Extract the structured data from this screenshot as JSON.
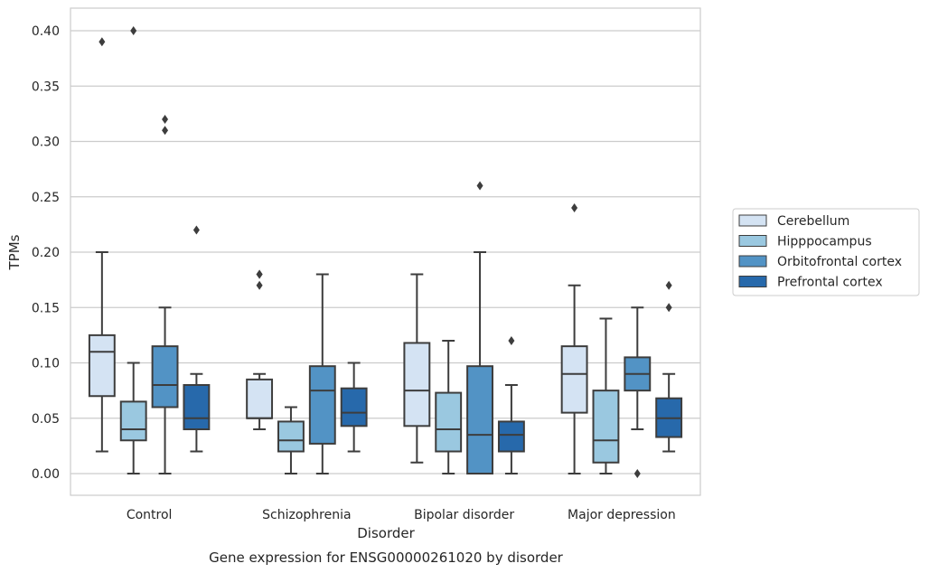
{
  "chart_data": {
    "type": "boxplot",
    "caption": "Gene expression for ENSG00000261020 by disorder",
    "xlabel": "Disorder",
    "ylabel": "TPMs",
    "ylim": [
      -0.02,
      0.42
    ],
    "yticks": [
      "0.00",
      "0.05",
      "0.10",
      "0.15",
      "0.20",
      "0.25",
      "0.30",
      "0.35",
      "0.40"
    ],
    "grid": true,
    "legend_position": "right-outside",
    "categories": [
      "Control",
      "Schizophrenia",
      "Bipolar disorder",
      "Major depression"
    ],
    "series": [
      {
        "name": "Cerebellum",
        "color": "#d4e3f3",
        "boxes": [
          {
            "whislo": 0.02,
            "q1": 0.07,
            "med": 0.11,
            "q3": 0.125,
            "whishi": 0.2,
            "fliers": [
              0.39
            ]
          },
          {
            "whislo": 0.04,
            "q1": 0.05,
            "med": 0.05,
            "q3": 0.085,
            "whishi": 0.09,
            "fliers": [
              0.17,
              0.18,
              0.18
            ]
          },
          {
            "whislo": 0.01,
            "q1": 0.043,
            "med": 0.075,
            "q3": 0.118,
            "whishi": 0.18,
            "fliers": []
          },
          {
            "whislo": 0.0,
            "q1": 0.055,
            "med": 0.09,
            "q3": 0.115,
            "whishi": 0.17,
            "fliers": [
              0.24
            ]
          }
        ]
      },
      {
        "name": "Hipppocampus",
        "color": "#9ac8e0",
        "boxes": [
          {
            "whislo": 0.0,
            "q1": 0.03,
            "med": 0.04,
            "q3": 0.065,
            "whishi": 0.1,
            "fliers": [
              0.4
            ]
          },
          {
            "whislo": 0.0,
            "q1": 0.02,
            "med": 0.03,
            "q3": 0.047,
            "whishi": 0.06,
            "fliers": []
          },
          {
            "whislo": 0.0,
            "q1": 0.02,
            "med": 0.04,
            "q3": 0.073,
            "whishi": 0.12,
            "fliers": []
          },
          {
            "whislo": 0.0,
            "q1": 0.01,
            "med": 0.03,
            "q3": 0.075,
            "whishi": 0.14,
            "fliers": []
          }
        ]
      },
      {
        "name": "Orbitofrontal cortex",
        "color": "#5293c5",
        "boxes": [
          {
            "whislo": 0.0,
            "q1": 0.06,
            "med": 0.08,
            "q3": 0.115,
            "whishi": 0.15,
            "fliers": [
              0.31,
              0.32
            ]
          },
          {
            "whislo": 0.0,
            "q1": 0.027,
            "med": 0.075,
            "q3": 0.097,
            "whishi": 0.18,
            "fliers": []
          },
          {
            "whislo": 0.0,
            "q1": 0.0,
            "med": 0.035,
            "q3": 0.097,
            "whishi": 0.2,
            "fliers": [
              0.26
            ]
          },
          {
            "whislo": 0.04,
            "q1": 0.075,
            "med": 0.09,
            "q3": 0.105,
            "whishi": 0.15,
            "fliers": [
              0.0
            ]
          }
        ]
      },
      {
        "name": "Prefrontal cortex",
        "color": "#2769ab",
        "boxes": [
          {
            "whislo": 0.02,
            "q1": 0.04,
            "med": 0.05,
            "q3": 0.08,
            "whishi": 0.09,
            "fliers": [
              0.22
            ]
          },
          {
            "whislo": 0.02,
            "q1": 0.043,
            "med": 0.055,
            "q3": 0.077,
            "whishi": 0.1,
            "fliers": []
          },
          {
            "whislo": 0.0,
            "q1": 0.02,
            "med": 0.035,
            "q3": 0.047,
            "whishi": 0.08,
            "fliers": [
              0.12
            ]
          },
          {
            "whislo": 0.02,
            "q1": 0.033,
            "med": 0.05,
            "q3": 0.068,
            "whishi": 0.09,
            "fliers": [
              0.15,
              0.17
            ]
          }
        ]
      }
    ]
  }
}
